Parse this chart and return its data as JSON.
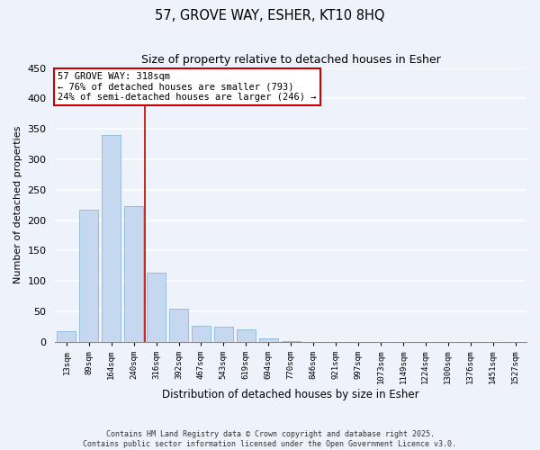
{
  "title": "57, GROVE WAY, ESHER, KT10 8HQ",
  "subtitle": "Size of property relative to detached houses in Esher",
  "xlabel": "Distribution of detached houses by size in Esher",
  "ylabel": "Number of detached properties",
  "bar_color": "#c5d8f0",
  "bar_edge_color": "#7aafd4",
  "categories": [
    "13sqm",
    "89sqm",
    "164sqm",
    "240sqm",
    "316sqm",
    "392sqm",
    "467sqm",
    "543sqm",
    "619sqm",
    "694sqm",
    "770sqm",
    "846sqm",
    "921sqm",
    "997sqm",
    "1073sqm",
    "1149sqm",
    "1224sqm",
    "1300sqm",
    "1376sqm",
    "1451sqm",
    "1527sqm"
  ],
  "values": [
    17,
    217,
    340,
    223,
    113,
    55,
    26,
    25,
    21,
    6,
    1,
    0,
    0,
    0,
    0,
    0,
    0,
    0,
    0,
    0,
    0
  ],
  "ylim": [
    0,
    450
  ],
  "yticks": [
    0,
    50,
    100,
    150,
    200,
    250,
    300,
    350,
    400,
    450
  ],
  "vline_index": 4,
  "vline_color": "#cc0000",
  "annotation_box_text": "57 GROVE WAY: 318sqm\n← 76% of detached houses are smaller (793)\n24% of semi-detached houses are larger (246) →",
  "annotation_box_color": "#cc0000",
  "annotation_box_fill": "#ffffff",
  "footnote1": "Contains HM Land Registry data © Crown copyright and database right 2025.",
  "footnote2": "Contains public sector information licensed under the Open Government Licence v3.0.",
  "background_color": "#eef2fa",
  "grid_color": "#ffffff"
}
